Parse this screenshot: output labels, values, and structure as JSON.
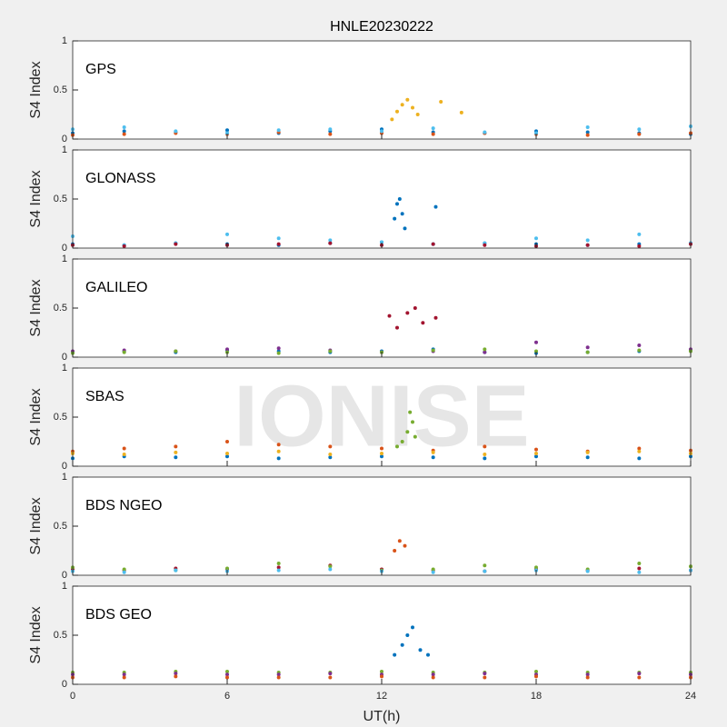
{
  "watermark": "IONISE",
  "chart_data": [
    {
      "type": "scatter",
      "title": "HNLE20230222",
      "label": "GPS",
      "ylabel": "S4 Index",
      "xlim": [
        0,
        24
      ],
      "ylim": [
        0,
        1
      ],
      "xticks": [
        0,
        6,
        12,
        18,
        24
      ],
      "yticks": [
        0,
        0.5,
        1
      ],
      "series": [
        {
          "color": "#0072BD",
          "x": [
            0,
            2,
            4,
            6,
            8,
            10,
            12,
            14,
            16,
            18,
            20,
            22,
            24
          ],
          "values": [
            0.06,
            0.08,
            0.07,
            0.09,
            0.06,
            0.08,
            0.1,
            0.07,
            0.06,
            0.08,
            0.07,
            0.06,
            0.05
          ]
        },
        {
          "color": "#D95319",
          "x": [
            0,
            2,
            4,
            6,
            8,
            10,
            12,
            14,
            16,
            18,
            20,
            22,
            24
          ],
          "values": [
            0.04,
            0.05,
            0.06,
            0.05,
            0.07,
            0.05,
            0.06,
            0.05,
            0.06,
            0.05,
            0.04,
            0.05,
            0.06
          ]
        },
        {
          "color": "#4DBEEE",
          "x": [
            0,
            2,
            4,
            6,
            8,
            10,
            12,
            14,
            16,
            18,
            20,
            22,
            24
          ],
          "values": [
            0.1,
            0.12,
            0.08,
            0.06,
            0.09,
            0.1,
            0.08,
            0.11,
            0.07,
            0.06,
            0.12,
            0.1,
            0.13
          ]
        },
        {
          "color": "#EDB120",
          "x": [
            12.4,
            12.6,
            12.8,
            13,
            13.2,
            13.4,
            14.3,
            15.1
          ],
          "values": [
            0.2,
            0.28,
            0.35,
            0.4,
            0.32,
            0.25,
            0.38,
            0.27
          ]
        }
      ]
    },
    {
      "type": "scatter",
      "label": "GLONASS",
      "ylabel": "S4 Index",
      "xlim": [
        0,
        24
      ],
      "ylim": [
        0,
        1
      ],
      "xticks": [
        0,
        6,
        12,
        18,
        24
      ],
      "yticks": [
        0,
        0.5,
        1
      ],
      "series": [
        {
          "color": "#0072BD",
          "x": [
            0,
            2,
            4,
            6,
            8,
            10,
            12,
            14,
            16,
            18,
            20,
            22,
            24
          ],
          "values": [
            0.04,
            0.03,
            0.05,
            0.04,
            0.03,
            0.05,
            0.06,
            0.04,
            0.05,
            0.04,
            0.03,
            0.04,
            0.05
          ]
        },
        {
          "color": "#4DBEEE",
          "x": [
            0,
            2,
            4,
            6,
            8,
            10,
            12,
            14,
            16,
            18,
            20,
            22,
            24
          ],
          "values": [
            0.12,
            0.03,
            0.05,
            0.14,
            0.1,
            0.08,
            0.06,
            0.04,
            0.05,
            0.1,
            0.08,
            0.14,
            0.05
          ]
        },
        {
          "color": "#A2142F",
          "x": [
            0,
            2,
            4,
            6,
            8,
            10,
            12,
            14,
            16,
            18,
            20,
            22,
            24
          ],
          "values": [
            0.03,
            0.02,
            0.04,
            0.03,
            0.04,
            0.05,
            0.03,
            0.04,
            0.03,
            0.02,
            0.03,
            0.02,
            0.04
          ]
        },
        {
          "color": "#0072BD",
          "x": [
            12.5,
            12.6,
            12.7,
            12.8,
            12.9,
            14.1
          ],
          "values": [
            0.3,
            0.45,
            0.5,
            0.35,
            0.2,
            0.42
          ]
        }
      ]
    },
    {
      "type": "scatter",
      "label": "GALILEO",
      "ylabel": "S4 Index",
      "xlim": [
        0,
        24
      ],
      "ylim": [
        0,
        1
      ],
      "xticks": [
        0,
        6,
        12,
        18,
        24
      ],
      "yticks": [
        0,
        0.5,
        1
      ],
      "series": [
        {
          "color": "#0072BD",
          "x": [
            0,
            2,
            4,
            6,
            8,
            10,
            12,
            14,
            16,
            18,
            20,
            22,
            24
          ],
          "values": [
            0.05,
            0.06,
            0.05,
            0.07,
            0.06,
            0.05,
            0.06,
            0.08,
            0.05,
            0.04,
            0.05,
            0.06,
            0.07
          ]
        },
        {
          "color": "#7E2F8E",
          "x": [
            0,
            2,
            4,
            6,
            8,
            10,
            12,
            14,
            16,
            18,
            20,
            22,
            24
          ],
          "values": [
            0.06,
            0.07,
            0.06,
            0.08,
            0.09,
            0.07,
            0.05,
            0.06,
            0.05,
            0.15,
            0.1,
            0.12,
            0.08
          ]
        },
        {
          "color": "#77AC30",
          "x": [
            0,
            2,
            4,
            6,
            8,
            10,
            12,
            14,
            16,
            18,
            20,
            22,
            24
          ],
          "values": [
            0.04,
            0.05,
            0.06,
            0.05,
            0.04,
            0.06,
            0.05,
            0.07,
            0.08,
            0.06,
            0.05,
            0.07,
            0.06
          ]
        },
        {
          "color": "#A2142F",
          "x": [
            12.3,
            12.6,
            13,
            13.3,
            13.6,
            14.1
          ],
          "values": [
            0.42,
            0.3,
            0.45,
            0.5,
            0.35,
            0.4
          ]
        }
      ]
    },
    {
      "type": "scatter",
      "label": "SBAS",
      "ylabel": "S4 Index",
      "xlim": [
        0,
        24
      ],
      "ylim": [
        0,
        1
      ],
      "xticks": [
        0,
        6,
        12,
        18,
        24
      ],
      "yticks": [
        0,
        0.5,
        1
      ],
      "series": [
        {
          "color": "#D95319",
          "x": [
            0,
            2,
            4,
            6,
            8,
            10,
            12,
            14,
            16,
            18,
            20,
            22,
            24
          ],
          "values": [
            0.15,
            0.18,
            0.2,
            0.25,
            0.22,
            0.2,
            0.18,
            0.16,
            0.2,
            0.17,
            0.15,
            0.18,
            0.16
          ]
        },
        {
          "color": "#0072BD",
          "x": [
            0,
            2,
            4,
            6,
            8,
            10,
            12,
            14,
            16,
            18,
            20,
            22,
            24
          ],
          "values": [
            0.08,
            0.1,
            0.09,
            0.1,
            0.08,
            0.09,
            0.1,
            0.09,
            0.08,
            0.1,
            0.09,
            0.08,
            0.1
          ]
        },
        {
          "color": "#EDB120",
          "x": [
            0,
            2,
            4,
            6,
            8,
            10,
            12,
            14,
            16,
            18,
            20,
            22,
            24
          ],
          "values": [
            0.13,
            0.12,
            0.14,
            0.13,
            0.15,
            0.12,
            0.13,
            0.14,
            0.12,
            0.13,
            0.14,
            0.15,
            0.13
          ]
        },
        {
          "color": "#77AC30",
          "x": [
            12.6,
            12.8,
            13,
            13.1,
            13.2,
            13.3
          ],
          "values": [
            0.2,
            0.25,
            0.35,
            0.55,
            0.45,
            0.3
          ]
        }
      ]
    },
    {
      "type": "scatter",
      "label": "BDS NGEO",
      "ylabel": "S4 Index",
      "xlim": [
        0,
        24
      ],
      "ylim": [
        0,
        1
      ],
      "xticks": [
        0,
        6,
        12,
        18,
        24
      ],
      "yticks": [
        0,
        0.5,
        1
      ],
      "series": [
        {
          "color": "#A2142F",
          "x": [
            0,
            2,
            4,
            6,
            8,
            10,
            12,
            14,
            16,
            18,
            20,
            22,
            24
          ],
          "values": [
            0.06,
            0.05,
            0.07,
            0.06,
            0.08,
            0.1,
            0.06,
            0.05,
            0.04,
            0.06,
            0.05,
            0.07,
            0.05
          ]
        },
        {
          "color": "#77AC30",
          "x": [
            0,
            2,
            4,
            6,
            8,
            10,
            12,
            14,
            16,
            18,
            20,
            22,
            24
          ],
          "values": [
            0.08,
            0.06,
            0.05,
            0.07,
            0.12,
            0.09,
            0.05,
            0.06,
            0.1,
            0.08,
            0.06,
            0.12,
            0.09
          ]
        },
        {
          "color": "#4DBEEE",
          "x": [
            0,
            2,
            4,
            6,
            8,
            10,
            12,
            14,
            16,
            18,
            20,
            22,
            24
          ],
          "values": [
            0.04,
            0.03,
            0.05,
            0.04,
            0.05,
            0.06,
            0.04,
            0.03,
            0.04,
            0.05,
            0.04,
            0.03,
            0.05
          ]
        },
        {
          "color": "#D95319",
          "x": [
            12.5,
            12.7,
            12.9
          ],
          "values": [
            0.25,
            0.35,
            0.3
          ]
        }
      ]
    },
    {
      "type": "scatter",
      "label": "BDS GEO",
      "ylabel": "S4 Index",
      "xlabel": "UT(h)",
      "xlim": [
        0,
        24
      ],
      "ylim": [
        0,
        1
      ],
      "xticks": [
        0,
        6,
        12,
        18,
        24
      ],
      "yticks": [
        0,
        0.5,
        1
      ],
      "series": [
        {
          "color": "#77AC30",
          "x": [
            0,
            2,
            4,
            6,
            8,
            10,
            12,
            14,
            16,
            18,
            20,
            22,
            24
          ],
          "values": [
            0.12,
            0.12,
            0.13,
            0.13,
            0.12,
            0.12,
            0.13,
            0.12,
            0.12,
            0.13,
            0.12,
            0.12,
            0.12
          ]
        },
        {
          "color": "#7E2F8E",
          "x": [
            0,
            2,
            4,
            6,
            8,
            10,
            12,
            14,
            16,
            18,
            20,
            22,
            24
          ],
          "values": [
            0.1,
            0.1,
            0.11,
            0.1,
            0.1,
            0.11,
            0.1,
            0.1,
            0.11,
            0.1,
            0.1,
            0.11,
            0.1
          ]
        },
        {
          "color": "#D95319",
          "x": [
            0,
            2,
            4,
            6,
            8,
            10,
            12,
            14,
            16,
            18,
            20,
            22,
            24
          ],
          "values": [
            0.07,
            0.07,
            0.08,
            0.07,
            0.07,
            0.07,
            0.08,
            0.07,
            0.07,
            0.08,
            0.07,
            0.07,
            0.07
          ]
        },
        {
          "color": "#0072BD",
          "x": [
            12.5,
            12.8,
            13,
            13.2,
            13.5,
            13.8
          ],
          "values": [
            0.3,
            0.4,
            0.5,
            0.58,
            0.35,
            0.3
          ]
        }
      ]
    }
  ]
}
